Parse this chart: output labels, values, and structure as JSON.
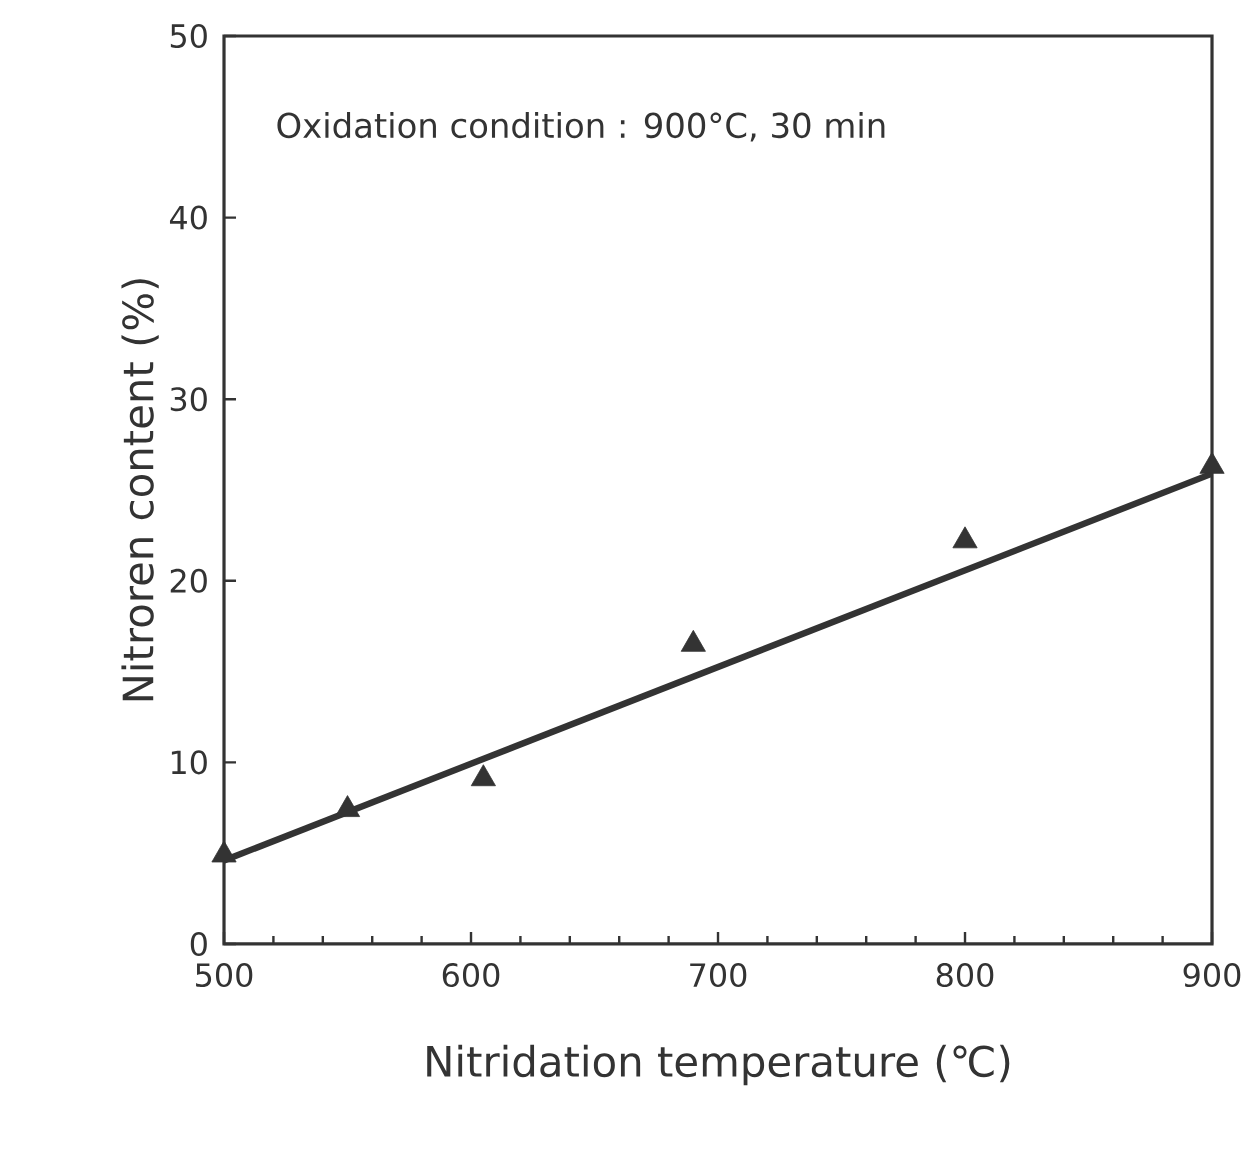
{
  "chart_data": {
    "type": "scatter",
    "xlabel": "Nitridation temperature (℃)",
    "ylabel": "Nitroren content (%)",
    "annotations": [
      "Oxidation condition : 900°C, 30 min"
    ],
    "x": [
      500,
      550,
      605,
      690,
      800,
      900
    ],
    "series": [
      {
        "color": "#333333",
        "marker": "triangle",
        "values": [
          4.9,
          7.4,
          9.1,
          16.5,
          22.2,
          26.3
        ]
      },
      {
        "type": "line",
        "color": "#333333",
        "marker": "none",
        "x": [
          500,
          900
        ],
        "values": [
          4.6,
          25.9
        ]
      }
    ],
    "xlim": [
      500,
      900
    ],
    "ylim": [
      0,
      50
    ],
    "xticks": [
      500,
      600,
      700,
      800,
      900
    ],
    "yticks": [
      0,
      10,
      20,
      30,
      40,
      50
    ],
    "grid": false
  }
}
